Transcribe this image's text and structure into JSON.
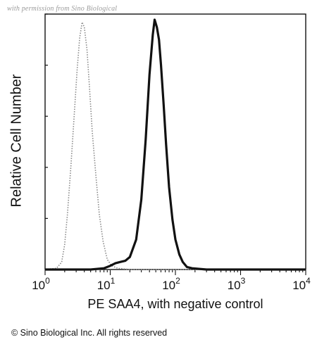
{
  "watermark": "with permission from Sino Biological",
  "copyright": "© Sino Biological Inc. All rights reserved",
  "chart_data": {
    "type": "area",
    "title": "",
    "xlabel": "PE SAA4, with negative control",
    "ylabel": "Relative Cell Number",
    "xscale": "log",
    "xlim": [
      1,
      10000
    ],
    "ylim": [
      0,
      100
    ],
    "grid": false,
    "x_ticks": [
      {
        "base": "10",
        "exp": "0"
      },
      {
        "base": "10",
        "exp": "1"
      },
      {
        "base": "10",
        "exp": "2"
      },
      {
        "base": "10",
        "exp": "3"
      },
      {
        "base": "10",
        "exp": "4"
      }
    ],
    "series": [
      {
        "style": "dotted",
        "color": "#888888",
        "x": [
          1,
          1.5,
          1.8,
          2.0,
          2.2,
          2.5,
          2.8,
          3.1,
          3.4,
          3.7,
          4.0,
          4.4,
          4.8,
          5.3,
          6.0,
          6.8,
          7.8,
          9.0,
          10.5,
          13,
          20,
          100,
          10000
        ],
        "y": [
          0,
          0.5,
          3,
          10,
          22,
          42,
          62,
          80,
          93,
          99,
          97,
          88,
          73,
          55,
          38,
          22,
          11,
          4,
          1.5,
          0.5,
          0,
          0,
          0
        ]
      },
      {
        "style": "solid",
        "color": "#111111",
        "x": [
          1,
          5,
          8,
          10,
          12,
          14,
          17,
          20,
          25,
          30,
          35,
          40,
          45,
          48,
          52,
          56,
          60,
          66,
          72,
          80,
          90,
          100,
          115,
          130,
          150,
          180,
          300,
          1000,
          10000
        ],
        "y": [
          0,
          0,
          0.5,
          1.5,
          2.5,
          3,
          3.5,
          5,
          12,
          28,
          52,
          78,
          94,
          100,
          97,
          92,
          82,
          66,
          50,
          33,
          20,
          12,
          6,
          3,
          1,
          0.5,
          0,
          0,
          0
        ]
      }
    ]
  }
}
